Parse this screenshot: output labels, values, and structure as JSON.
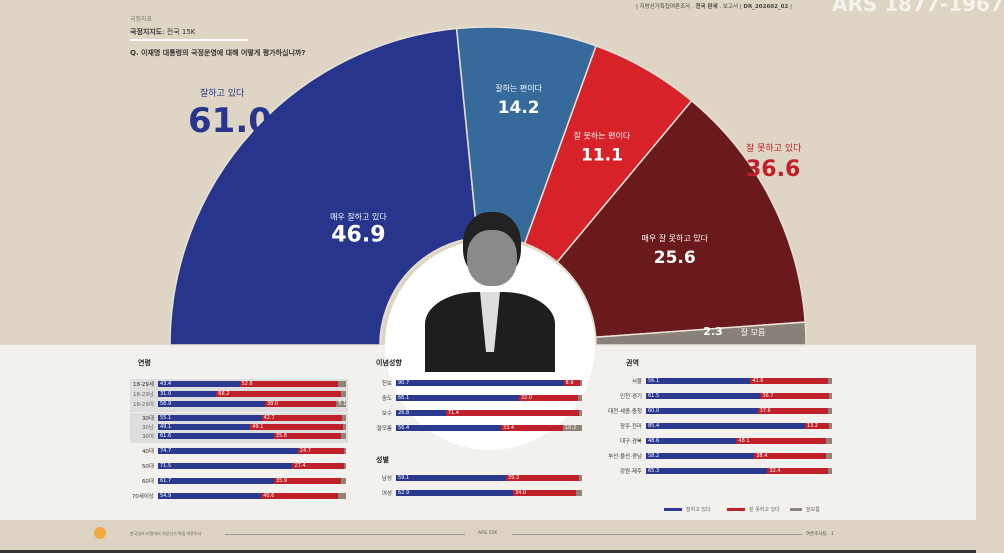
{
  "header": {
    "category": "국정지표",
    "subtitle_bold": "국정지지도",
    "subtitle_rest": ": 전국 15K",
    "question": "Q. 이재명 대통령의 국정운영에 대해 어떻게 평가하십니까?",
    "meta_left": "지방선거특집여론조사",
    "meta_bold": "전국 판세",
    "meta_right": "보고서",
    "code": "DR_202602_02",
    "overlay": "ARS 1877-1967"
  },
  "colors": {
    "very_good": "#27368c",
    "good": "#366a9a",
    "bad": "#d8222a",
    "very_bad": "#6b1a1c",
    "unknown": "#8a827a",
    "bar_pos": "#2b3990",
    "bar_neg": "#c0202a",
    "bar_unk": "#8f8278"
  },
  "chart_data": [
    {
      "type": "pie",
      "title": "국정지지도",
      "subtype": "semicircle-donut",
      "slices": [
        {
          "label": "매우 잘하고 있다",
          "value": 46.9,
          "key": "very_good"
        },
        {
          "label": "잘하는 편이다",
          "value": 14.2,
          "key": "good"
        },
        {
          "label": "잘 못하는 편이다",
          "value": 11.1,
          "key": "bad"
        },
        {
          "label": "매우 잘 못하고 있다",
          "value": 25.6,
          "key": "very_bad"
        },
        {
          "label": "잘 모름",
          "value": 2.3,
          "key": "unknown"
        }
      ],
      "totals": {
        "positive_label": "잘하고 있다",
        "positive": "61.0",
        "negative_label": "잘 못하고 있다",
        "negative": "36.6"
      }
    },
    {
      "type": "bar",
      "stacked": true,
      "title": "연령",
      "series_names": [
        "잘하고 있다",
        "잘 못하고 있다",
        "잘 모름"
      ],
      "rows": [
        {
          "label": "18-29세",
          "pos": 43.4,
          "neg": 52.6,
          "group": 1,
          "main": true
        },
        {
          "label": "18-29남",
          "pos": 31.0,
          "neg": 66.2,
          "group": 1
        },
        {
          "label": "18-29여",
          "pos": 56.9,
          "neg": 38.0,
          "unk": "5.1",
          "group": 1
        },
        {
          "label": "30대",
          "pos": 55.1,
          "neg": 42.7,
          "group": 2,
          "main": true
        },
        {
          "label": "30남",
          "pos": 49.1,
          "neg": 49.1,
          "group": 2
        },
        {
          "label": "30여",
          "pos": 61.6,
          "neg": 35.8,
          "group": 2
        },
        {
          "label": "40대",
          "pos": 74.7,
          "neg": 24.7,
          "main": true
        },
        {
          "label": "50대",
          "pos": 71.5,
          "neg": 27.4,
          "main": true
        },
        {
          "label": "60대",
          "pos": 61.7,
          "neg": 35.9,
          "main": true
        },
        {
          "label": "70세이상",
          "pos": 54.9,
          "neg": 40.6,
          "main": true
        }
      ]
    },
    {
      "type": "bar",
      "stacked": true,
      "title": "이념성향",
      "rows": [
        {
          "label": "진보",
          "pos": 90.7,
          "neg": 8.9
        },
        {
          "label": "중도",
          "pos": 66.1,
          "neg": 32.0
        },
        {
          "label": "보수",
          "pos": 26.8,
          "neg": 71.4
        },
        {
          "label": "잘모름",
          "pos": 56.4,
          "neg": 33.4,
          "unk": "10.2"
        }
      ]
    },
    {
      "type": "bar",
      "stacked": true,
      "title": "성별",
      "rows": [
        {
          "label": "남성",
          "pos": 59.1,
          "neg": 39.3
        },
        {
          "label": "여성",
          "pos": 62.9,
          "neg": 34.0
        }
      ]
    },
    {
      "type": "bar",
      "stacked": true,
      "title": "권역",
      "rows": [
        {
          "label": "서울",
          "pos": 56.1,
          "neg": 41.6
        },
        {
          "label": "인천·경기",
          "pos": 61.5,
          "neg": 36.7
        },
        {
          "label": "대전·세종·충청",
          "pos": 60.0,
          "neg": 37.6
        },
        {
          "label": "광주·전라",
          "pos": 85.4,
          "neg": 13.2
        },
        {
          "label": "대구·경북",
          "pos": 48.6,
          "neg": 48.1
        },
        {
          "label": "부산·울산·경남",
          "pos": 58.2,
          "neg": 38.4
        },
        {
          "label": "강원·제주",
          "pos": 65.3,
          "neg": 32.4
        }
      ]
    }
  ],
  "legend": [
    "잘하고 있다",
    "잘 못하고 있다",
    "잘모름"
  ],
  "footer": {
    "left": "한국일보·리얼미터 지방선거 특집 여론조사",
    "center": "ARS 15K",
    "right": "여론조사팀 · 1"
  }
}
